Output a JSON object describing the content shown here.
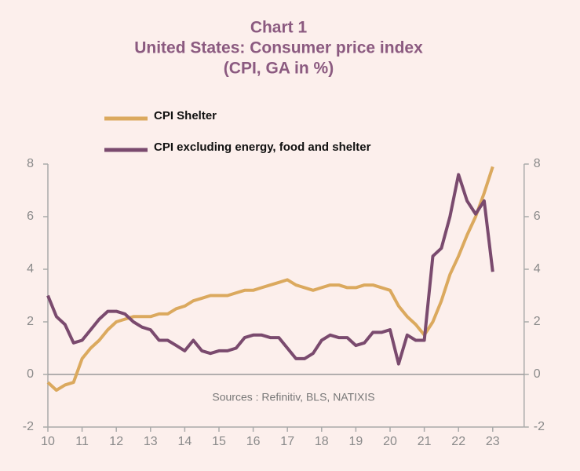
{
  "chart_data": {
    "type": "line",
    "title_lines": [
      "Chart 1",
      "United States: Consumer price index",
      "(CPI, GA in %)"
    ],
    "annotation": "Sources : Refinitiv, BLS, NATIXIS",
    "x": [
      10,
      10.25,
      10.5,
      10.75,
      11,
      11.25,
      11.5,
      11.75,
      12,
      12.25,
      12.5,
      12.75,
      13,
      13.25,
      13.5,
      13.75,
      14,
      14.25,
      14.5,
      14.75,
      15,
      15.25,
      15.5,
      15.75,
      16,
      16.25,
      16.5,
      16.75,
      17,
      17.25,
      17.5,
      17.75,
      18,
      18.25,
      18.5,
      18.75,
      19,
      19.25,
      19.5,
      19.75,
      20,
      20.25,
      20.5,
      20.75,
      21,
      21.25,
      21.5,
      21.75,
      22,
      22.25,
      22.5,
      22.75,
      23
    ],
    "series": [
      {
        "name": "CPI Shelter",
        "color": "#dba95e",
        "values": [
          -0.3,
          -0.6,
          -0.4,
          -0.3,
          0.6,
          1.0,
          1.3,
          1.7,
          2.0,
          2.1,
          2.2,
          2.2,
          2.2,
          2.3,
          2.3,
          2.5,
          2.6,
          2.8,
          2.9,
          3.0,
          3.0,
          3.0,
          3.1,
          3.2,
          3.2,
          3.3,
          3.4,
          3.5,
          3.6,
          3.4,
          3.3,
          3.2,
          3.3,
          3.4,
          3.4,
          3.3,
          3.3,
          3.4,
          3.4,
          3.3,
          3.2,
          2.6,
          2.2,
          1.9,
          1.5,
          2.0,
          2.8,
          3.8,
          4.5,
          5.3,
          6.0,
          6.9,
          7.9
        ]
      },
      {
        "name": "CPI excluding energy, food and shelter",
        "color": "#7a4a6e",
        "values": [
          3.0,
          2.2,
          1.9,
          1.2,
          1.3,
          1.7,
          2.1,
          2.4,
          2.4,
          2.3,
          2.0,
          1.8,
          1.7,
          1.3,
          1.3,
          1.1,
          0.9,
          1.3,
          0.9,
          0.8,
          0.9,
          0.9,
          1.0,
          1.4,
          1.5,
          1.5,
          1.4,
          1.4,
          1.0,
          0.6,
          0.6,
          0.8,
          1.3,
          1.5,
          1.4,
          1.4,
          1.1,
          1.2,
          1.6,
          1.6,
          1.7,
          0.4,
          1.5,
          1.3,
          1.3,
          4.5,
          4.8,
          6.0,
          7.6,
          6.6,
          6.1,
          6.6,
          3.9
        ]
      }
    ],
    "xlim": [
      10,
      24
    ],
    "xticks": [
      10,
      11,
      12,
      13,
      14,
      15,
      16,
      17,
      18,
      19,
      20,
      21,
      22,
      23
    ],
    "ylim": [
      -2,
      8
    ],
    "yticks": [
      -2,
      0,
      2,
      4,
      6,
      8
    ],
    "y2lim": [
      -2,
      8
    ],
    "y2ticks": [
      -2,
      0,
      2,
      4,
      6,
      8
    ],
    "grid": false
  }
}
